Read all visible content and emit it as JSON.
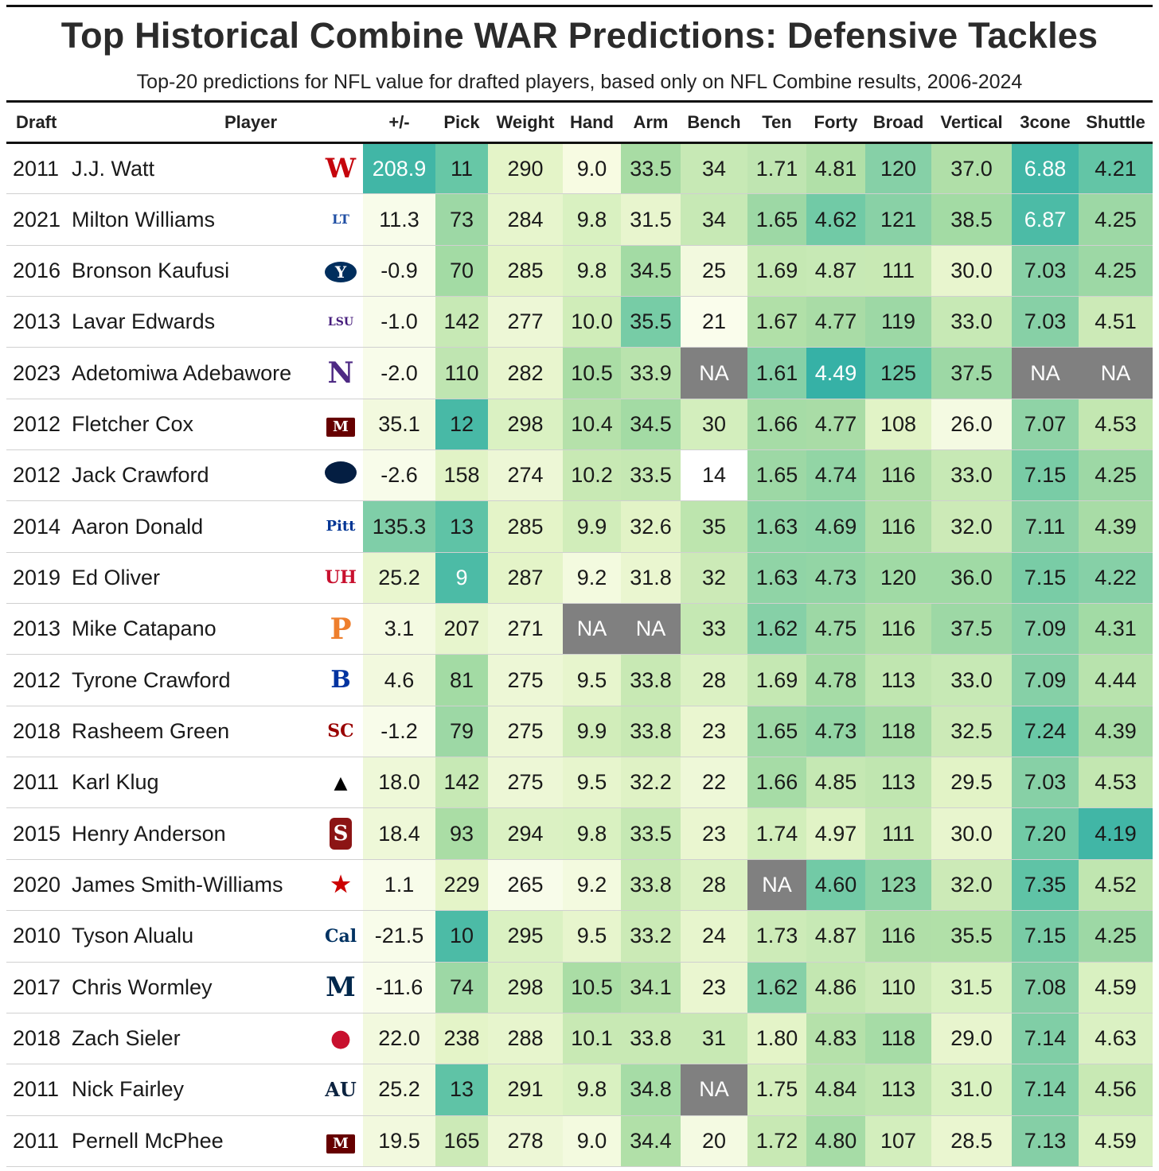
{
  "title": "Top Historical Combine WAR Predictions: Defensive Tackles",
  "subtitle": "Top-20 predictions for NFL value for drafted players, based only on NFL Combine results, 2006-2024",
  "chart_data": {
    "type": "table",
    "columns": [
      "Draft",
      "Player",
      "+/-",
      "Pick",
      "Weight",
      "Hand",
      "Arm",
      "Bench",
      "Ten",
      "Forty",
      "Broad",
      "Vertical",
      "3cone",
      "Shuttle"
    ],
    "rows": [
      {
        "draft": "2011",
        "player": "J.J. Watt",
        "school_icon": "wisconsin-logo-icon",
        "pm": "208.9",
        "pick": "11",
        "weight": "290",
        "hand": "9.0",
        "arm": "33.5",
        "bench": "34",
        "ten": "1.71",
        "forty": "4.81",
        "broad": "120",
        "vertical": "37.0",
        "cone": "6.88",
        "shuttle": "4.21"
      },
      {
        "draft": "2021",
        "player": "Milton Williams",
        "school_icon": "louisiana-tech-logo-icon",
        "pm": "11.3",
        "pick": "73",
        "weight": "284",
        "hand": "9.8",
        "arm": "31.5",
        "bench": "34",
        "ten": "1.65",
        "forty": "4.62",
        "broad": "121",
        "vertical": "38.5",
        "cone": "6.87",
        "shuttle": "4.25"
      },
      {
        "draft": "2016",
        "player": "Bronson Kaufusi",
        "school_icon": "byu-logo-icon",
        "pm": "-0.9",
        "pick": "70",
        "weight": "285",
        "hand": "9.8",
        "arm": "34.5",
        "bench": "25",
        "ten": "1.69",
        "forty": "4.87",
        "broad": "111",
        "vertical": "30.0",
        "cone": "7.03",
        "shuttle": "4.25"
      },
      {
        "draft": "2013",
        "player": "Lavar Edwards",
        "school_icon": "lsu-logo-icon",
        "pm": "-1.0",
        "pick": "142",
        "weight": "277",
        "hand": "10.0",
        "arm": "35.5",
        "bench": "21",
        "ten": "1.67",
        "forty": "4.77",
        "broad": "119",
        "vertical": "33.0",
        "cone": "7.03",
        "shuttle": "4.51"
      },
      {
        "draft": "2023",
        "player": "Adetomiwa Adebawore",
        "school_icon": "northwestern-logo-icon",
        "pm": "-2.0",
        "pick": "110",
        "weight": "282",
        "hand": "10.5",
        "arm": "33.9",
        "bench": "NA",
        "ten": "1.61",
        "forty": "4.49",
        "broad": "125",
        "vertical": "37.5",
        "cone": "NA",
        "shuttle": "NA"
      },
      {
        "draft": "2012",
        "player": "Fletcher Cox",
        "school_icon": "mississippi-state-logo-icon",
        "pm": "35.1",
        "pick": "12",
        "weight": "298",
        "hand": "10.4",
        "arm": "34.5",
        "bench": "30",
        "ten": "1.66",
        "forty": "4.77",
        "broad": "108",
        "vertical": "26.0",
        "cone": "7.07",
        "shuttle": "4.53"
      },
      {
        "draft": "2012",
        "player": "Jack Crawford",
        "school_icon": "penn-state-logo-icon",
        "pm": "-2.6",
        "pick": "158",
        "weight": "274",
        "hand": "10.2",
        "arm": "33.5",
        "bench": "14",
        "ten": "1.65",
        "forty": "4.74",
        "broad": "116",
        "vertical": "33.0",
        "cone": "7.15",
        "shuttle": "4.25"
      },
      {
        "draft": "2014",
        "player": "Aaron Donald",
        "school_icon": "pitt-logo-icon",
        "pm": "135.3",
        "pick": "13",
        "weight": "285",
        "hand": "9.9",
        "arm": "32.6",
        "bench": "35",
        "ten": "1.63",
        "forty": "4.69",
        "broad": "116",
        "vertical": "32.0",
        "cone": "7.11",
        "shuttle": "4.39"
      },
      {
        "draft": "2019",
        "player": "Ed Oliver",
        "school_icon": "houston-logo-icon",
        "pm": "25.2",
        "pick": "9",
        "weight": "287",
        "hand": "9.2",
        "arm": "31.8",
        "bench": "32",
        "ten": "1.63",
        "forty": "4.73",
        "broad": "120",
        "vertical": "36.0",
        "cone": "7.15",
        "shuttle": "4.22"
      },
      {
        "draft": "2013",
        "player": "Mike Catapano",
        "school_icon": "princeton-logo-icon",
        "pm": "3.1",
        "pick": "207",
        "weight": "271",
        "hand": "NA",
        "arm": "NA",
        "bench": "33",
        "ten": "1.62",
        "forty": "4.75",
        "broad": "116",
        "vertical": "37.5",
        "cone": "7.09",
        "shuttle": "4.31"
      },
      {
        "draft": "2012",
        "player": "Tyrone Crawford",
        "school_icon": "boise-state-logo-icon",
        "pm": "4.6",
        "pick": "81",
        "weight": "275",
        "hand": "9.5",
        "arm": "33.8",
        "bench": "28",
        "ten": "1.69",
        "forty": "4.78",
        "broad": "113",
        "vertical": "33.0",
        "cone": "7.09",
        "shuttle": "4.44"
      },
      {
        "draft": "2018",
        "player": "Rasheem Green",
        "school_icon": "usc-logo-icon",
        "pm": "-1.2",
        "pick": "79",
        "weight": "275",
        "hand": "9.9",
        "arm": "33.8",
        "bench": "23",
        "ten": "1.65",
        "forty": "4.73",
        "broad": "118",
        "vertical": "32.5",
        "cone": "7.24",
        "shuttle": "4.39"
      },
      {
        "draft": "2011",
        "player": "Karl Klug",
        "school_icon": "iowa-logo-icon",
        "pm": "18.0",
        "pick": "142",
        "weight": "275",
        "hand": "9.5",
        "arm": "32.2",
        "bench": "22",
        "ten": "1.66",
        "forty": "4.85",
        "broad": "113",
        "vertical": "29.5",
        "cone": "7.03",
        "shuttle": "4.53"
      },
      {
        "draft": "2015",
        "player": "Henry Anderson",
        "school_icon": "stanford-logo-icon",
        "pm": "18.4",
        "pick": "93",
        "weight": "294",
        "hand": "9.8",
        "arm": "33.5",
        "bench": "23",
        "ten": "1.74",
        "forty": "4.97",
        "broad": "111",
        "vertical": "30.0",
        "cone": "7.20",
        "shuttle": "4.19"
      },
      {
        "draft": "2020",
        "player": "James Smith-Williams",
        "school_icon": "nc-state-logo-icon",
        "pm": "1.1",
        "pick": "229",
        "weight": "265",
        "hand": "9.2",
        "arm": "33.8",
        "bench": "28",
        "ten": "NA",
        "forty": "4.60",
        "broad": "123",
        "vertical": "32.0",
        "cone": "7.35",
        "shuttle": "4.52"
      },
      {
        "draft": "2010",
        "player": "Tyson Alualu",
        "school_icon": "cal-logo-icon",
        "pm": "-21.5",
        "pick": "10",
        "weight": "295",
        "hand": "9.5",
        "arm": "33.2",
        "bench": "24",
        "ten": "1.73",
        "forty": "4.87",
        "broad": "116",
        "vertical": "35.5",
        "cone": "7.15",
        "shuttle": "4.25"
      },
      {
        "draft": "2017",
        "player": "Chris Wormley",
        "school_icon": "michigan-logo-icon",
        "pm": "-11.6",
        "pick": "74",
        "weight": "298",
        "hand": "10.5",
        "arm": "34.1",
        "bench": "23",
        "ten": "1.62",
        "forty": "4.86",
        "broad": "110",
        "vertical": "31.5",
        "cone": "7.08",
        "shuttle": "4.59"
      },
      {
        "draft": "2018",
        "player": "Zach Sieler",
        "school_icon": "ferris-state-logo-icon",
        "pm": "22.0",
        "pick": "238",
        "weight": "288",
        "hand": "10.1",
        "arm": "33.8",
        "bench": "31",
        "ten": "1.80",
        "forty": "4.83",
        "broad": "118",
        "vertical": "29.0",
        "cone": "7.14",
        "shuttle": "4.63"
      },
      {
        "draft": "2011",
        "player": "Nick Fairley",
        "school_icon": "auburn-logo-icon",
        "pm": "25.2",
        "pick": "13",
        "weight": "291",
        "hand": "9.8",
        "arm": "34.8",
        "bench": "NA",
        "ten": "1.75",
        "forty": "4.84",
        "broad": "113",
        "vertical": "31.0",
        "cone": "7.14",
        "shuttle": "4.56"
      },
      {
        "draft": "2011",
        "player": "Pernell McPhee",
        "school_icon": "mississippi-state-logo-icon",
        "pm": "19.5",
        "pick": "165",
        "weight": "278",
        "hand": "9.0",
        "arm": "34.4",
        "bench": "20",
        "ten": "1.72",
        "forty": "4.80",
        "broad": "107",
        "vertical": "28.5",
        "cone": "7.13",
        "shuttle": "4.59"
      }
    ],
    "cell_colors": [
      [
        "#41b6a6",
        "#67c7a6",
        "#e4f4c8",
        "#f7fbe2",
        "#a8dca4",
        "#c7e9b5",
        "#bfe5b1",
        "#b1e0a8",
        "#86d0a7",
        "#b0dfa8",
        "#41b6a6",
        "#63c5a6"
      ],
      [
        "#f8fcea",
        "#9dd8a5",
        "#e7f5cd",
        "#d9f1c1",
        "#e8f5ce",
        "#c7e9b5",
        "#9dd8a5",
        "#71caa6",
        "#89d1a6",
        "#a3dba4",
        "#4cbba6",
        "#9dd8a5"
      ],
      [
        "#f8fcea",
        "#a3dba4",
        "#e4f4c8",
        "#d9f1c1",
        "#a3dba4",
        "#f2f9de",
        "#c5e8b3",
        "#c7e9b5",
        "#c8e9b4",
        "#e8f5ce",
        "#87d0a6",
        "#9dd8a5"
      ],
      [
        "#f8fcea",
        "#c7e9b5",
        "#edf7d6",
        "#d0edb9",
        "#77cca6",
        "#fafdec",
        "#b1e0a8",
        "#a9dca6",
        "#9dd8a5",
        "#c7e9b5",
        "#87d0a6",
        "#cceab7"
      ],
      [
        "#f8fcea",
        "#bfe5b1",
        "#e8f5ce",
        "#aadda5",
        "#b9e3ad",
        "#808080",
        "#86d0a7",
        "#36b1a6",
        "#6ac8a6",
        "#9dd8a5",
        "#808080",
        "#808080"
      ],
      [
        "#f2f9de",
        "#48b9a6",
        "#daf1c2",
        "#b5e1aa",
        "#a3dba4",
        "#d3eebd",
        "#a6dca6",
        "#a9dca6",
        "#e1f3c6",
        "#f4fae2",
        "#8fd3a6",
        "#c3e7b1"
      ],
      [
        "#f8fcea",
        "#e1f3c6",
        "#edf7d6",
        "#c8e9b4",
        "#c5e8b3",
        "#ffffff",
        "#9dd8a5",
        "#92d5a5",
        "#b0dfa8",
        "#c7e9b5",
        "#79cca6",
        "#9dd8a5"
      ],
      [
        "#7fcea8",
        "#5fc3a6",
        "#e4f4c8",
        "#d1edba",
        "#e2f3c6",
        "#bde5ae",
        "#90d4a6",
        "#8dd3a6",
        "#b0dfa8",
        "#cceab7",
        "#8bd1a6",
        "#a8dca6"
      ],
      [
        "#e9f6cf",
        "#4cbba6",
        "#e4f4c8",
        "#f3fadf",
        "#eaf6d0",
        "#cceab7",
        "#90d4a6",
        "#93d5a5",
        "#a0daa5",
        "#a0daa5",
        "#79cca6",
        "#86d0a7"
      ],
      [
        "#f4fae2",
        "#e7f5cd",
        "#eef8d8",
        "#808080",
        "#808080",
        "#c5e8b3",
        "#86d0a7",
        "#9dd8a5",
        "#b0dfa8",
        "#9dd8a5",
        "#86d0a7",
        "#a2dba5"
      ],
      [
        "#f2f9de",
        "#a3dba4",
        "#edf7d6",
        "#e7f5cd",
        "#c8e9b4",
        "#dbf1c3",
        "#c5e8b3",
        "#a6dca6",
        "#c0e6b0",
        "#c7e9b5",
        "#86d0a7",
        "#b8e3ad"
      ],
      [
        "#f8fcea",
        "#9dd8a5",
        "#edf7d6",
        "#d1edba",
        "#c8e9b4",
        "#eaf6d0",
        "#9dd8a5",
        "#93d5a5",
        "#a8dca6",
        "#cceab7",
        "#6ac8a6",
        "#a8dca6"
      ],
      [
        "#eef8d8",
        "#c7e9b5",
        "#edf7d6",
        "#e7f5cd",
        "#dff2c5",
        "#eef8d8",
        "#a6dca6",
        "#c5e8b3",
        "#c0e6b0",
        "#e2f3c6",
        "#87d0a6",
        "#c3e7b1"
      ],
      [
        "#eef8d8",
        "#aadda5",
        "#dbf1c3",
        "#d9f1c1",
        "#c5e8b3",
        "#eaf6d0",
        "#d2eebb",
        "#e1f3c6",
        "#c8e9b4",
        "#e8f5ce",
        "#71caa6",
        "#41b6a6"
      ],
      [
        "#f8fcea",
        "#e4f4c8",
        "#f8fcea",
        "#f3fadf",
        "#c8e9b4",
        "#dbf1c3",
        "#808080",
        "#72caa6",
        "#8dd3a6",
        "#cceab7",
        "#5fc3a6",
        "#c0e6b0"
      ],
      [
        "#f8fcea",
        "#4cbba6",
        "#daf1c2",
        "#e7f5cd",
        "#cbeab6",
        "#e7f5cd",
        "#cdebb8",
        "#c7e9b5",
        "#b0dfa8",
        "#b1e0a8",
        "#79cca6",
        "#9dd8a5"
      ],
      [
        "#f8fcea",
        "#9dd8a5",
        "#daf1c2",
        "#aadda5",
        "#b5e1aa",
        "#eaf6d0",
        "#86d0a7",
        "#c3e7b1",
        "#cceab7",
        "#d9f1c1",
        "#85cfa6",
        "#d9f1c1"
      ],
      [
        "#f2f9de",
        "#e4f4c8",
        "#e7f5cd",
        "#c8e9b4",
        "#c8e9b4",
        "#c8e9b4",
        "#e4f4c8",
        "#b5e1aa",
        "#a6dca6",
        "#e8f5ce",
        "#80cea6",
        "#dbf1c3"
      ],
      [
        "#f2f9de",
        "#5fc3a6",
        "#e1f3c6",
        "#d9f1c1",
        "#a6dca6",
        "#808080",
        "#d4eebc",
        "#b8e3ad",
        "#c0e6b0",
        "#d9f1c1",
        "#80cea6",
        "#c8e9b4"
      ],
      [
        "#f2f9de",
        "#cceab7",
        "#edf7d6",
        "#f3fadf",
        "#b1e0a8",
        "#f4fae2",
        "#c8e9b4",
        "#a6dca6",
        "#d3eebd",
        "#eaf6d0",
        "#85cfa6",
        "#d9f1c1"
      ]
    ],
    "light_text_cells": [
      [
        0,
        0
      ],
      [
        0,
        10
      ],
      [
        1,
        10
      ],
      [
        4,
        7
      ],
      [
        8,
        1
      ]
    ]
  }
}
